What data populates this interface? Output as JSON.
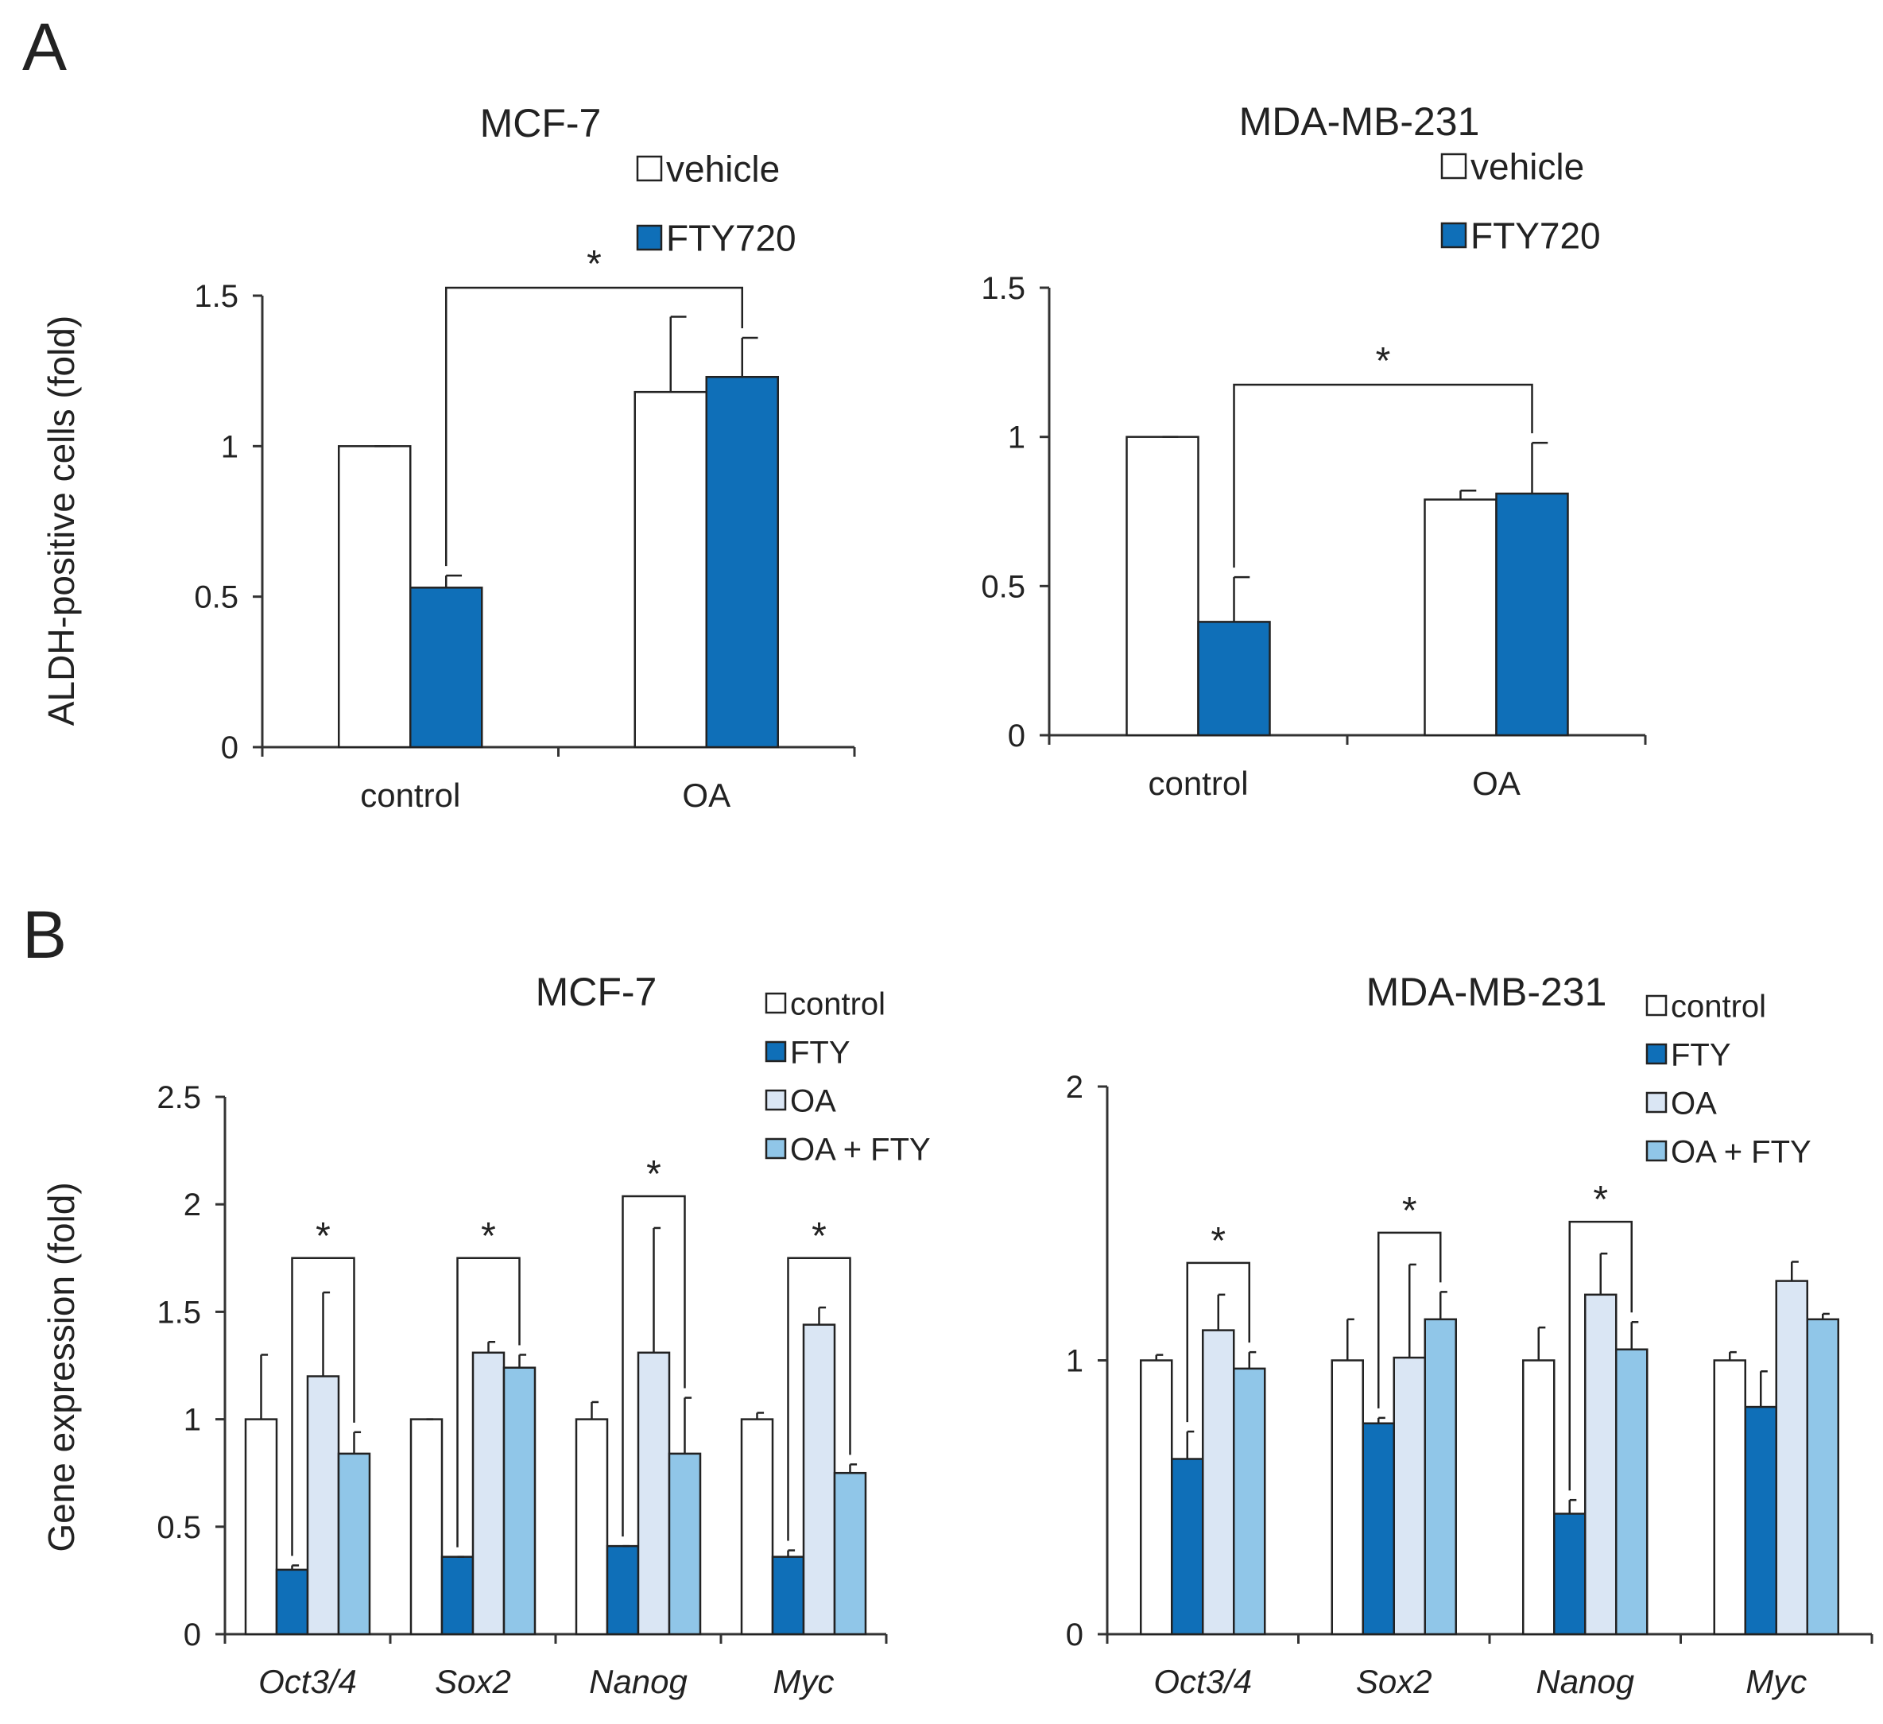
{
  "figure": {
    "panel_labels": [
      "A",
      "B"
    ]
  },
  "colors": {
    "vehicle": "#ffffff",
    "fty720": "#0f6fb8",
    "control": "#ffffff",
    "fty": "#0f6fb8",
    "oa": "#dae6f4",
    "oa_fty": "#90c6e8",
    "axis": "#333333"
  },
  "chart_data": [
    {
      "id": "A-MCF7",
      "type": "bar",
      "title": "MCF-7",
      "ylabel": "ALDH-positive cells (fold)",
      "xlabel": "",
      "categories": [
        "control",
        "OA"
      ],
      "ylim": [
        0,
        1.5
      ],
      "yticks": [
        0,
        0.5,
        1,
        1.5
      ],
      "ytick_labels": [
        "0",
        "0.5",
        "1",
        "1.5"
      ],
      "legend": "top-right",
      "series": [
        {
          "name": "vehicle",
          "values": [
            1.0,
            1.18
          ],
          "errors": [
            0,
            0.25
          ]
        },
        {
          "name": "FTY720",
          "values": [
            0.53,
            1.23
          ],
          "errors": [
            0.04,
            0.13
          ]
        }
      ],
      "significance": [
        {
          "label": "*",
          "from": [
            0,
            1
          ],
          "to": [
            1,
            1
          ]
        }
      ]
    },
    {
      "id": "A-MDA",
      "type": "bar",
      "title": "MDA-MB-231",
      "ylabel": "",
      "xlabel": "",
      "categories": [
        "control",
        "OA"
      ],
      "ylim": [
        0,
        1.5
      ],
      "yticks": [
        0,
        0.5,
        1,
        1.5
      ],
      "ytick_labels": [
        "0",
        "0.5",
        "1",
        "1.5"
      ],
      "legend": "top-right",
      "series": [
        {
          "name": "vehicle",
          "values": [
            1.0,
            0.79
          ],
          "errors": [
            0,
            0.03
          ]
        },
        {
          "name": "FTY720",
          "values": [
            0.38,
            0.81
          ],
          "errors": [
            0.15,
            0.17
          ]
        }
      ],
      "significance": [
        {
          "label": "*",
          "from": [
            0,
            1
          ],
          "to": [
            1,
            1
          ]
        }
      ]
    },
    {
      "id": "B-MCF7",
      "type": "bar",
      "title": "MCF-7",
      "ylabel": "Gene expression (fold)",
      "xlabel": "",
      "categories": [
        "Oct3/4",
        "Sox2",
        "Nanog",
        "Myc"
      ],
      "ylim": [
        0,
        2.5
      ],
      "yticks": [
        0,
        0.5,
        1,
        1.5,
        2,
        2.5
      ],
      "ytick_labels": [
        "0",
        "0.5",
        "1",
        "1.5",
        "2",
        "2.5"
      ],
      "legend": "top-right",
      "series": [
        {
          "name": "control",
          "values": [
            1.0,
            1.0,
            1.0,
            1.0
          ],
          "errors": [
            0.3,
            0.0,
            0.08,
            0.03
          ]
        },
        {
          "name": "FTY",
          "values": [
            0.3,
            0.36,
            0.41,
            0.36
          ],
          "errors": [
            0.02,
            0.0,
            0.0,
            0.03
          ]
        },
        {
          "name": "OA",
          "values": [
            1.2,
            1.31,
            1.31,
            1.44
          ],
          "errors": [
            0.39,
            0.05,
            0.58,
            0.08
          ]
        },
        {
          "name": "OA + FTY",
          "values": [
            0.84,
            1.24,
            0.84,
            0.75
          ],
          "errors": [
            0.1,
            0.06,
            0.26,
            0.04
          ]
        }
      ],
      "significance": [
        {
          "label": "*",
          "group": 0,
          "between": [
            1,
            3
          ]
        },
        {
          "label": "*",
          "group": 1,
          "between": [
            1,
            3
          ]
        },
        {
          "label": "*",
          "group": 2,
          "between": [
            1,
            3
          ]
        },
        {
          "label": "*",
          "group": 3,
          "between": [
            1,
            3
          ]
        }
      ]
    },
    {
      "id": "B-MDA",
      "type": "bar",
      "title": "MDA-MB-231",
      "ylabel": "",
      "xlabel": "",
      "categories": [
        "Oct3/4",
        "Sox2",
        "Nanog",
        "Myc"
      ],
      "ylim": [
        0,
        2
      ],
      "yticks": [
        0,
        1,
        2
      ],
      "ytick_labels": [
        "0",
        "1",
        "2"
      ],
      "legend": "top-right",
      "series": [
        {
          "name": "control",
          "values": [
            1.0,
            1.0,
            1.0,
            1.0
          ],
          "errors": [
            0.02,
            0.15,
            0.12,
            0.03
          ]
        },
        {
          "name": "FTY",
          "values": [
            0.64,
            0.77,
            0.44,
            0.83
          ],
          "errors": [
            0.1,
            0.02,
            0.05,
            0.13
          ]
        },
        {
          "name": "OA",
          "values": [
            1.11,
            1.01,
            1.24,
            1.29
          ],
          "errors": [
            0.13,
            0.34,
            0.15,
            0.07
          ]
        },
        {
          "name": "OA + FTY",
          "values": [
            0.97,
            1.15,
            1.04,
            1.15
          ],
          "errors": [
            0.06,
            0.1,
            0.1,
            0.02
          ]
        }
      ],
      "significance": [
        {
          "label": "*",
          "group": 0,
          "between": [
            1,
            3
          ]
        },
        {
          "label": "*",
          "group": 1,
          "between": [
            1,
            3
          ]
        },
        {
          "label": "*",
          "group": 2,
          "between": [
            1,
            3
          ]
        }
      ]
    }
  ]
}
